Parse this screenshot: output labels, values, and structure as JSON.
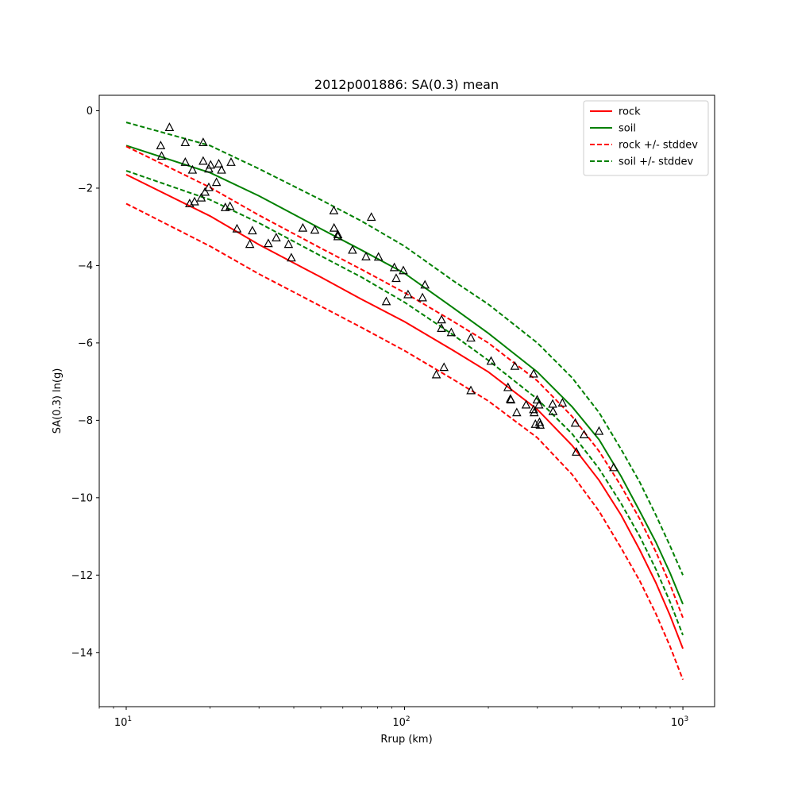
{
  "chart_data": {
    "type": "scatter",
    "title": "2012p001886: SA(0.3) mean",
    "xlabel": "Rrup (km)",
    "ylabel": "SA(0.3) ln(g)",
    "xscale": "log",
    "xlim": [
      8.0,
      1300.0
    ],
    "ylim": [
      -15.4,
      0.4
    ],
    "yticks": [
      0,
      -2,
      -4,
      -6,
      -8,
      -10,
      -12,
      -14
    ],
    "ytick_labels": [
      "0",
      "−2",
      "−4",
      "−6",
      "−8",
      "−10",
      "−12",
      "−14"
    ],
    "xticks": [
      {
        "value": 10,
        "base": "10",
        "exp": "1"
      },
      {
        "value": 100,
        "base": "10",
        "exp": "2"
      },
      {
        "value": 1000,
        "base": "10",
        "exp": "3"
      }
    ],
    "grid": false,
    "legend_position": "top-right",
    "series": [
      {
        "name": "rock",
        "color": "#ff0000",
        "style": "solid",
        "x": [
          10,
          20,
          30,
          50,
          70,
          100,
          150,
          200,
          300,
          400,
          500,
          600,
          700,
          800,
          900,
          1000
        ],
        "y": [
          -1.65,
          -2.72,
          -3.46,
          -4.3,
          -4.87,
          -5.45,
          -6.2,
          -6.75,
          -7.72,
          -8.65,
          -9.55,
          -10.45,
          -11.35,
          -12.2,
          -13.05,
          -13.9
        ]
      },
      {
        "name": "soil",
        "color": "#008000",
        "style": "solid",
        "x": [
          10,
          20,
          30,
          50,
          70,
          100,
          150,
          200,
          300,
          400,
          500,
          600,
          700,
          800,
          900,
          1000
        ],
        "y": [
          -0.9,
          -1.6,
          -2.2,
          -3.05,
          -3.6,
          -4.2,
          -5.1,
          -5.75,
          -6.75,
          -7.65,
          -8.5,
          -9.45,
          -10.35,
          -11.15,
          -11.95,
          -12.75
        ]
      },
      {
        "name": "rock +/- stddev",
        "color": "#ff0000",
        "style": "dashed",
        "x": [
          10,
          20,
          30,
          50,
          70,
          100,
          150,
          200,
          300,
          400,
          500,
          600,
          700,
          800,
          900,
          1000
        ],
        "y": [
          -2.4,
          -3.5,
          -4.22,
          -5.05,
          -5.6,
          -6.2,
          -6.95,
          -7.5,
          -8.45,
          -9.4,
          -10.35,
          -11.3,
          -12.15,
          -13.0,
          -13.85,
          -14.7
        ]
      },
      {
        "name": "",
        "color": "#ff0000",
        "style": "dashed",
        "x": [
          10,
          20,
          30,
          50,
          70,
          100,
          150,
          200,
          300,
          400,
          500,
          600,
          700,
          800,
          900,
          1000
        ],
        "y": [
          -0.92,
          -1.98,
          -2.7,
          -3.55,
          -4.1,
          -4.7,
          -5.45,
          -6.0,
          -6.98,
          -7.9,
          -8.8,
          -9.7,
          -10.55,
          -11.4,
          -12.25,
          -13.1
        ]
      },
      {
        "name": "soil +/- stddev",
        "color": "#008000",
        "style": "dashed",
        "x": [
          10,
          20,
          30,
          50,
          70,
          100,
          150,
          200,
          300,
          400,
          500,
          600,
          700,
          800,
          900,
          1000
        ],
        "y": [
          -1.55,
          -2.3,
          -2.9,
          -3.75,
          -4.3,
          -4.95,
          -5.8,
          -6.45,
          -7.45,
          -8.35,
          -9.25,
          -10.15,
          -11.0,
          -11.85,
          -12.7,
          -13.55
        ]
      },
      {
        "name": "",
        "color": "#008000",
        "style": "dashed",
        "x": [
          10,
          20,
          30,
          50,
          70,
          100,
          150,
          200,
          300,
          400,
          500,
          600,
          700,
          800,
          900,
          1000
        ],
        "y": [
          -0.3,
          -0.9,
          -1.5,
          -2.3,
          -2.85,
          -3.5,
          -4.4,
          -5.0,
          -6.0,
          -6.9,
          -7.8,
          -8.75,
          -9.6,
          -10.45,
          -11.25,
          -12.0
        ]
      }
    ],
    "observations": {
      "marker": "triangle-open",
      "color": "#000000",
      "points": [
        [
          14.3,
          -0.43
        ],
        [
          13.3,
          -0.9
        ],
        [
          13.4,
          -1.17
        ],
        [
          16.3,
          -0.82
        ],
        [
          18.9,
          -0.82
        ],
        [
          16.3,
          -1.33
        ],
        [
          17.3,
          -1.53
        ],
        [
          18.9,
          -1.3
        ],
        [
          20.1,
          -1.4
        ],
        [
          19.8,
          -1.5
        ],
        [
          21.5,
          -1.37
        ],
        [
          22.0,
          -1.53
        ],
        [
          23.8,
          -1.33
        ],
        [
          21.1,
          -1.85
        ],
        [
          19.8,
          -1.98
        ],
        [
          19.2,
          -2.1
        ],
        [
          18.6,
          -2.25
        ],
        [
          17.6,
          -2.35
        ],
        [
          16.9,
          -2.4
        ],
        [
          22.7,
          -2.5
        ],
        [
          23.6,
          -2.47
        ],
        [
          25.0,
          -3.05
        ],
        [
          28.4,
          -3.1
        ],
        [
          27.8,
          -3.45
        ],
        [
          32.4,
          -3.43
        ],
        [
          34.6,
          -3.28
        ],
        [
          38.3,
          -3.45
        ],
        [
          39.2,
          -3.8
        ],
        [
          43.1,
          -3.03
        ],
        [
          47.6,
          -3.08
        ],
        [
          55.7,
          -2.58
        ],
        [
          55.8,
          -3.03
        ],
        [
          57.6,
          -3.25
        ],
        [
          57.6,
          -3.2
        ],
        [
          65.0,
          -3.6
        ],
        [
          72.7,
          -3.77
        ],
        [
          76.0,
          -2.75
        ],
        [
          80.6,
          -3.78
        ],
        [
          91.9,
          -4.05
        ],
        [
          99.0,
          -4.13
        ],
        [
          93.3,
          -4.33
        ],
        [
          86.0,
          -4.93
        ],
        [
          102.9,
          -4.75
        ],
        [
          118.4,
          -4.5
        ],
        [
          116.0,
          -4.83
        ],
        [
          135.8,
          -5.4
        ],
        [
          135.7,
          -5.62
        ],
        [
          147.2,
          -5.73
        ],
        [
          173.1,
          -5.87
        ],
        [
          130.1,
          -6.82
        ],
        [
          138.6,
          -6.63
        ],
        [
          173.1,
          -7.23
        ],
        [
          204.6,
          -6.47
        ],
        [
          235.3,
          -7.15
        ],
        [
          240.0,
          -7.45
        ],
        [
          241.0,
          -7.47
        ],
        [
          249.0,
          -6.6
        ],
        [
          253.0,
          -7.8
        ],
        [
          273.3,
          -7.6
        ],
        [
          290.8,
          -6.8
        ],
        [
          290.8,
          -7.72
        ],
        [
          292.2,
          -7.8
        ],
        [
          299.5,
          -7.47
        ],
        [
          304.0,
          -7.6
        ],
        [
          295.2,
          -8.1
        ],
        [
          305.5,
          -8.05
        ],
        [
          307.0,
          -8.12
        ],
        [
          340.5,
          -7.58
        ],
        [
          341.5,
          -7.77
        ],
        [
          369.1,
          -7.55
        ],
        [
          410.6,
          -8.07
        ],
        [
          414.1,
          -8.82
        ],
        [
          441.4,
          -8.37
        ],
        [
          499.8,
          -8.28
        ],
        [
          564.1,
          -9.22
        ]
      ]
    }
  }
}
